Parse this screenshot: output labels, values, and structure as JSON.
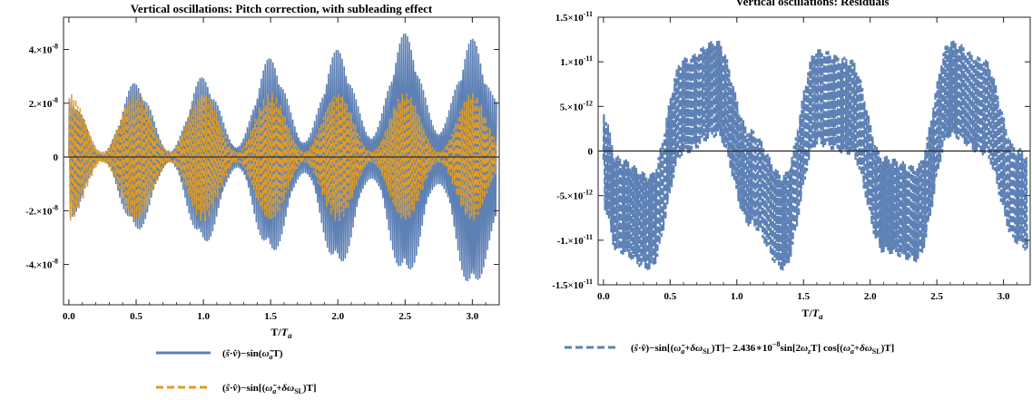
{
  "chart_data": [
    {
      "type": "line",
      "title": "Vertical oscillations: Pitch correction, with subleading effect",
      "xlabel": "T/T_a",
      "ylabel": "",
      "xlim": [
        -0.04,
        3.2
      ],
      "ylim": [
        -5.5e-08,
        5.2e-08
      ],
      "xticks": [
        "0.0",
        "0.5",
        "1.0",
        "1.5",
        "2.0",
        "2.5",
        "3.0"
      ],
      "xtick_values": [
        0,
        0.5,
        1,
        1.5,
        2,
        2.5,
        3
      ],
      "yticks": [
        {
          "value": 4e-08,
          "mant": "4.",
          "exp": "-8"
        },
        {
          "value": 2e-08,
          "mant": "2.",
          "exp": "-8"
        },
        {
          "value": 0,
          "mant": "0",
          "exp": ""
        },
        {
          "value": -2e-08,
          "mant": "-2.",
          "exp": "-8"
        },
        {
          "value": -4e-08,
          "mant": "-4.",
          "exp": "-8"
        }
      ],
      "series": [
        {
          "name": "(ŝ·v̂)−sin(ω̃ₐT)",
          "color": "#5E81B5",
          "dash": "solid",
          "envelope_x": [
            0.0,
            0.25,
            0.5,
            0.75,
            1.0,
            1.25,
            1.5,
            1.75,
            2.0,
            2.25,
            2.5,
            2.75,
            3.0,
            3.2
          ],
          "envelope_upper": [
            2.3e-08,
            1e-09,
            2.8e-08,
            2e-09,
            3e-08,
            4e-09,
            3.7e-08,
            6e-09,
            4e-08,
            8e-09,
            4.6e-08,
            1e-08,
            4.4e-08,
            2e-08
          ],
          "envelope_lower": [
            -2.3e-08,
            -1e-09,
            -2.8e-08,
            -2e-09,
            -3.3e-08,
            -4e-09,
            -3.7e-08,
            -6e-09,
            -4.2e-08,
            -8e-09,
            -4.6e-08,
            -1e-08,
            -5.1e-08,
            -2.5e-08
          ]
        },
        {
          "name": "(ŝ·v̂)−sin[(ω̃ₐ+δω_SL)T]",
          "color": "#E19C24",
          "dash": "dashed",
          "envelope_x": [
            0.0,
            0.25,
            0.5,
            0.75,
            1.0,
            1.25,
            1.5,
            1.75,
            2.0,
            2.25,
            2.5,
            2.75,
            3.0,
            3.2
          ],
          "envelope_upper": [
            2.4e-08,
            2e-09,
            2.4e-08,
            2e-09,
            2.4e-08,
            2e-09,
            2.4e-08,
            2e-09,
            2.4e-08,
            2e-09,
            2.4e-08,
            2e-09,
            2.4e-08,
            6e-09
          ],
          "envelope_lower": [
            -2.4e-08,
            -2e-09,
            -2.4e-08,
            -2e-09,
            -2.4e-08,
            -2e-09,
            -2.4e-08,
            -2e-09,
            -2.4e-08,
            -2e-09,
            -2.4e-08,
            -2e-09,
            -2.4e-08,
            -6e-09
          ]
        }
      ]
    },
    {
      "type": "line",
      "title": "Vertical oscillations: Residuals",
      "xlabel": "T/T_a",
      "ylabel": "",
      "xlim": [
        -0.04,
        3.2
      ],
      "ylim": [
        -1.5e-11,
        1.5e-11
      ],
      "xticks": [
        "0.0",
        "0.5",
        "1.0",
        "1.5",
        "2.0",
        "2.5",
        "3.0"
      ],
      "xtick_values": [
        0,
        0.5,
        1,
        1.5,
        2,
        2.5,
        3
      ],
      "yticks": [
        {
          "value": 1.5e-11,
          "mant": "1.5",
          "exp": "-11"
        },
        {
          "value": 1e-11,
          "mant": "1.",
          "exp": "-11"
        },
        {
          "value": 5e-12,
          "mant": "5.",
          "exp": "-12"
        },
        {
          "value": 0,
          "mant": "0",
          "exp": ""
        },
        {
          "value": -5e-12,
          "mant": "-5.",
          "exp": "-12"
        },
        {
          "value": -1e-11,
          "mant": "-1.",
          "exp": "-11"
        },
        {
          "value": -1.5e-11,
          "mant": "-1.5",
          "exp": "-11"
        }
      ],
      "series": [
        {
          "name": "(ŝ·v̂)−sin[(ω̃ₐ+δω_SL)T]− 2.436∗10⁻⁸sin[2ω_zT] cos[(ω̃ₐ+δω_SL)T]",
          "color": "#5E81B5",
          "dash": "dashed",
          "center_x": [
            0.0,
            0.1,
            0.35,
            0.6,
            0.85,
            1.1,
            1.35,
            1.6,
            1.85,
            2.1,
            2.35,
            2.6,
            2.85,
            3.1,
            3.2
          ],
          "center_y": [
            -1e-12,
            -6e-12,
            -8e-12,
            5e-12,
            7e-12,
            -3e-12,
            -8e-12,
            6e-12,
            5e-12,
            -6e-12,
            -7e-12,
            7e-12,
            5e-12,
            -5e-12,
            -6e-12
          ],
          "halfwidth": 5.5e-12
        }
      ]
    }
  ]
}
